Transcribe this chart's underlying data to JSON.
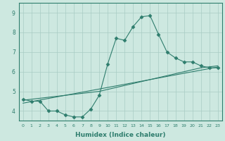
{
  "xlabel": "Humidex (Indice chaleur)",
  "ylabel": "",
  "x_values": [
    0,
    1,
    2,
    3,
    4,
    5,
    6,
    7,
    8,
    9,
    10,
    11,
    12,
    13,
    14,
    15,
    16,
    17,
    18,
    19,
    20,
    21,
    22,
    23
  ],
  "line1": [
    4.6,
    4.5,
    4.5,
    4.0,
    4.0,
    3.8,
    3.7,
    3.7,
    4.1,
    4.8,
    6.4,
    7.7,
    7.6,
    8.3,
    8.8,
    8.85,
    7.9,
    7.0,
    6.7,
    6.5,
    6.5,
    6.3,
    6.2,
    6.2
  ],
  "line2": [
    4.55,
    4.6,
    4.65,
    4.7,
    4.75,
    4.8,
    4.85,
    4.9,
    4.95,
    5.0,
    5.1,
    5.2,
    5.3,
    5.4,
    5.5,
    5.6,
    5.7,
    5.8,
    5.9,
    6.0,
    6.1,
    6.2,
    6.25,
    6.3
  ],
  "line3": [
    4.4,
    4.48,
    4.56,
    4.64,
    4.72,
    4.8,
    4.88,
    4.96,
    5.04,
    5.12,
    5.2,
    5.28,
    5.36,
    5.44,
    5.52,
    5.6,
    5.68,
    5.76,
    5.84,
    5.92,
    6.0,
    6.08,
    6.16,
    6.24
  ],
  "ylim": [
    3.5,
    9.5
  ],
  "yticks": [
    4,
    5,
    6,
    7,
    8,
    9
  ],
  "xticks": [
    0,
    1,
    2,
    3,
    4,
    5,
    6,
    7,
    8,
    9,
    10,
    11,
    12,
    13,
    14,
    15,
    16,
    17,
    18,
    19,
    20,
    21,
    22,
    23
  ],
  "line_color": "#2e7d6d",
  "bg_color": "#cde8e0",
  "grid_color": "#a8ccc4",
  "marker": "D",
  "marker_size": 2.5
}
